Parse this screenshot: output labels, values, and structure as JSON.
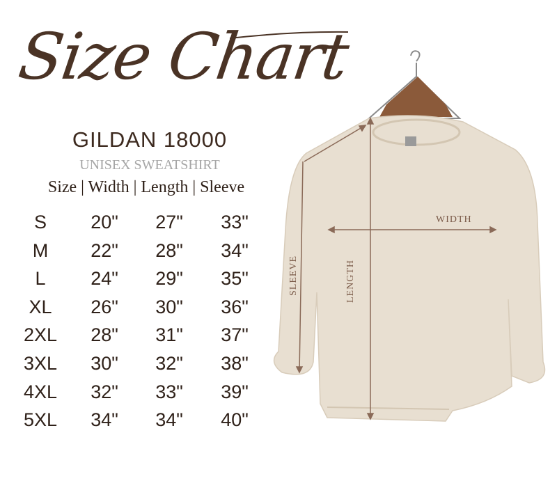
{
  "title": "Size Chart",
  "brand": "GILDAN 18000",
  "subtitle": "UNISEX SWEATSHIRT",
  "header": "Size | Width | Length | Sleeve",
  "columns": [
    "Size",
    "Width",
    "Length",
    "Sleeve"
  ],
  "rows": [
    [
      "S",
      "20\"",
      "27\"",
      "33\""
    ],
    [
      "M",
      "22\"",
      "28\"",
      "34\""
    ],
    [
      "L",
      "24\"",
      "29\"",
      "35\""
    ],
    [
      "XL",
      "26\"",
      "30\"",
      "36\""
    ],
    [
      "2XL",
      "28\"",
      "31\"",
      "37\""
    ],
    [
      "3XL",
      "30\"",
      "32\"",
      "38\""
    ],
    [
      "4XL",
      "32\"",
      "33\"",
      "39\""
    ],
    [
      "5XL",
      "34\"",
      "34\"",
      "40\""
    ]
  ],
  "diagram_labels": {
    "width": "WIDTH",
    "length": "LENGTH",
    "sleeve": "SLEEVE"
  },
  "colors": {
    "title": "#4a3325",
    "text": "#2f2119",
    "subtitle": "#a6a6a6",
    "garment": "#e8dfd1",
    "arrows": "#8a6a58"
  }
}
